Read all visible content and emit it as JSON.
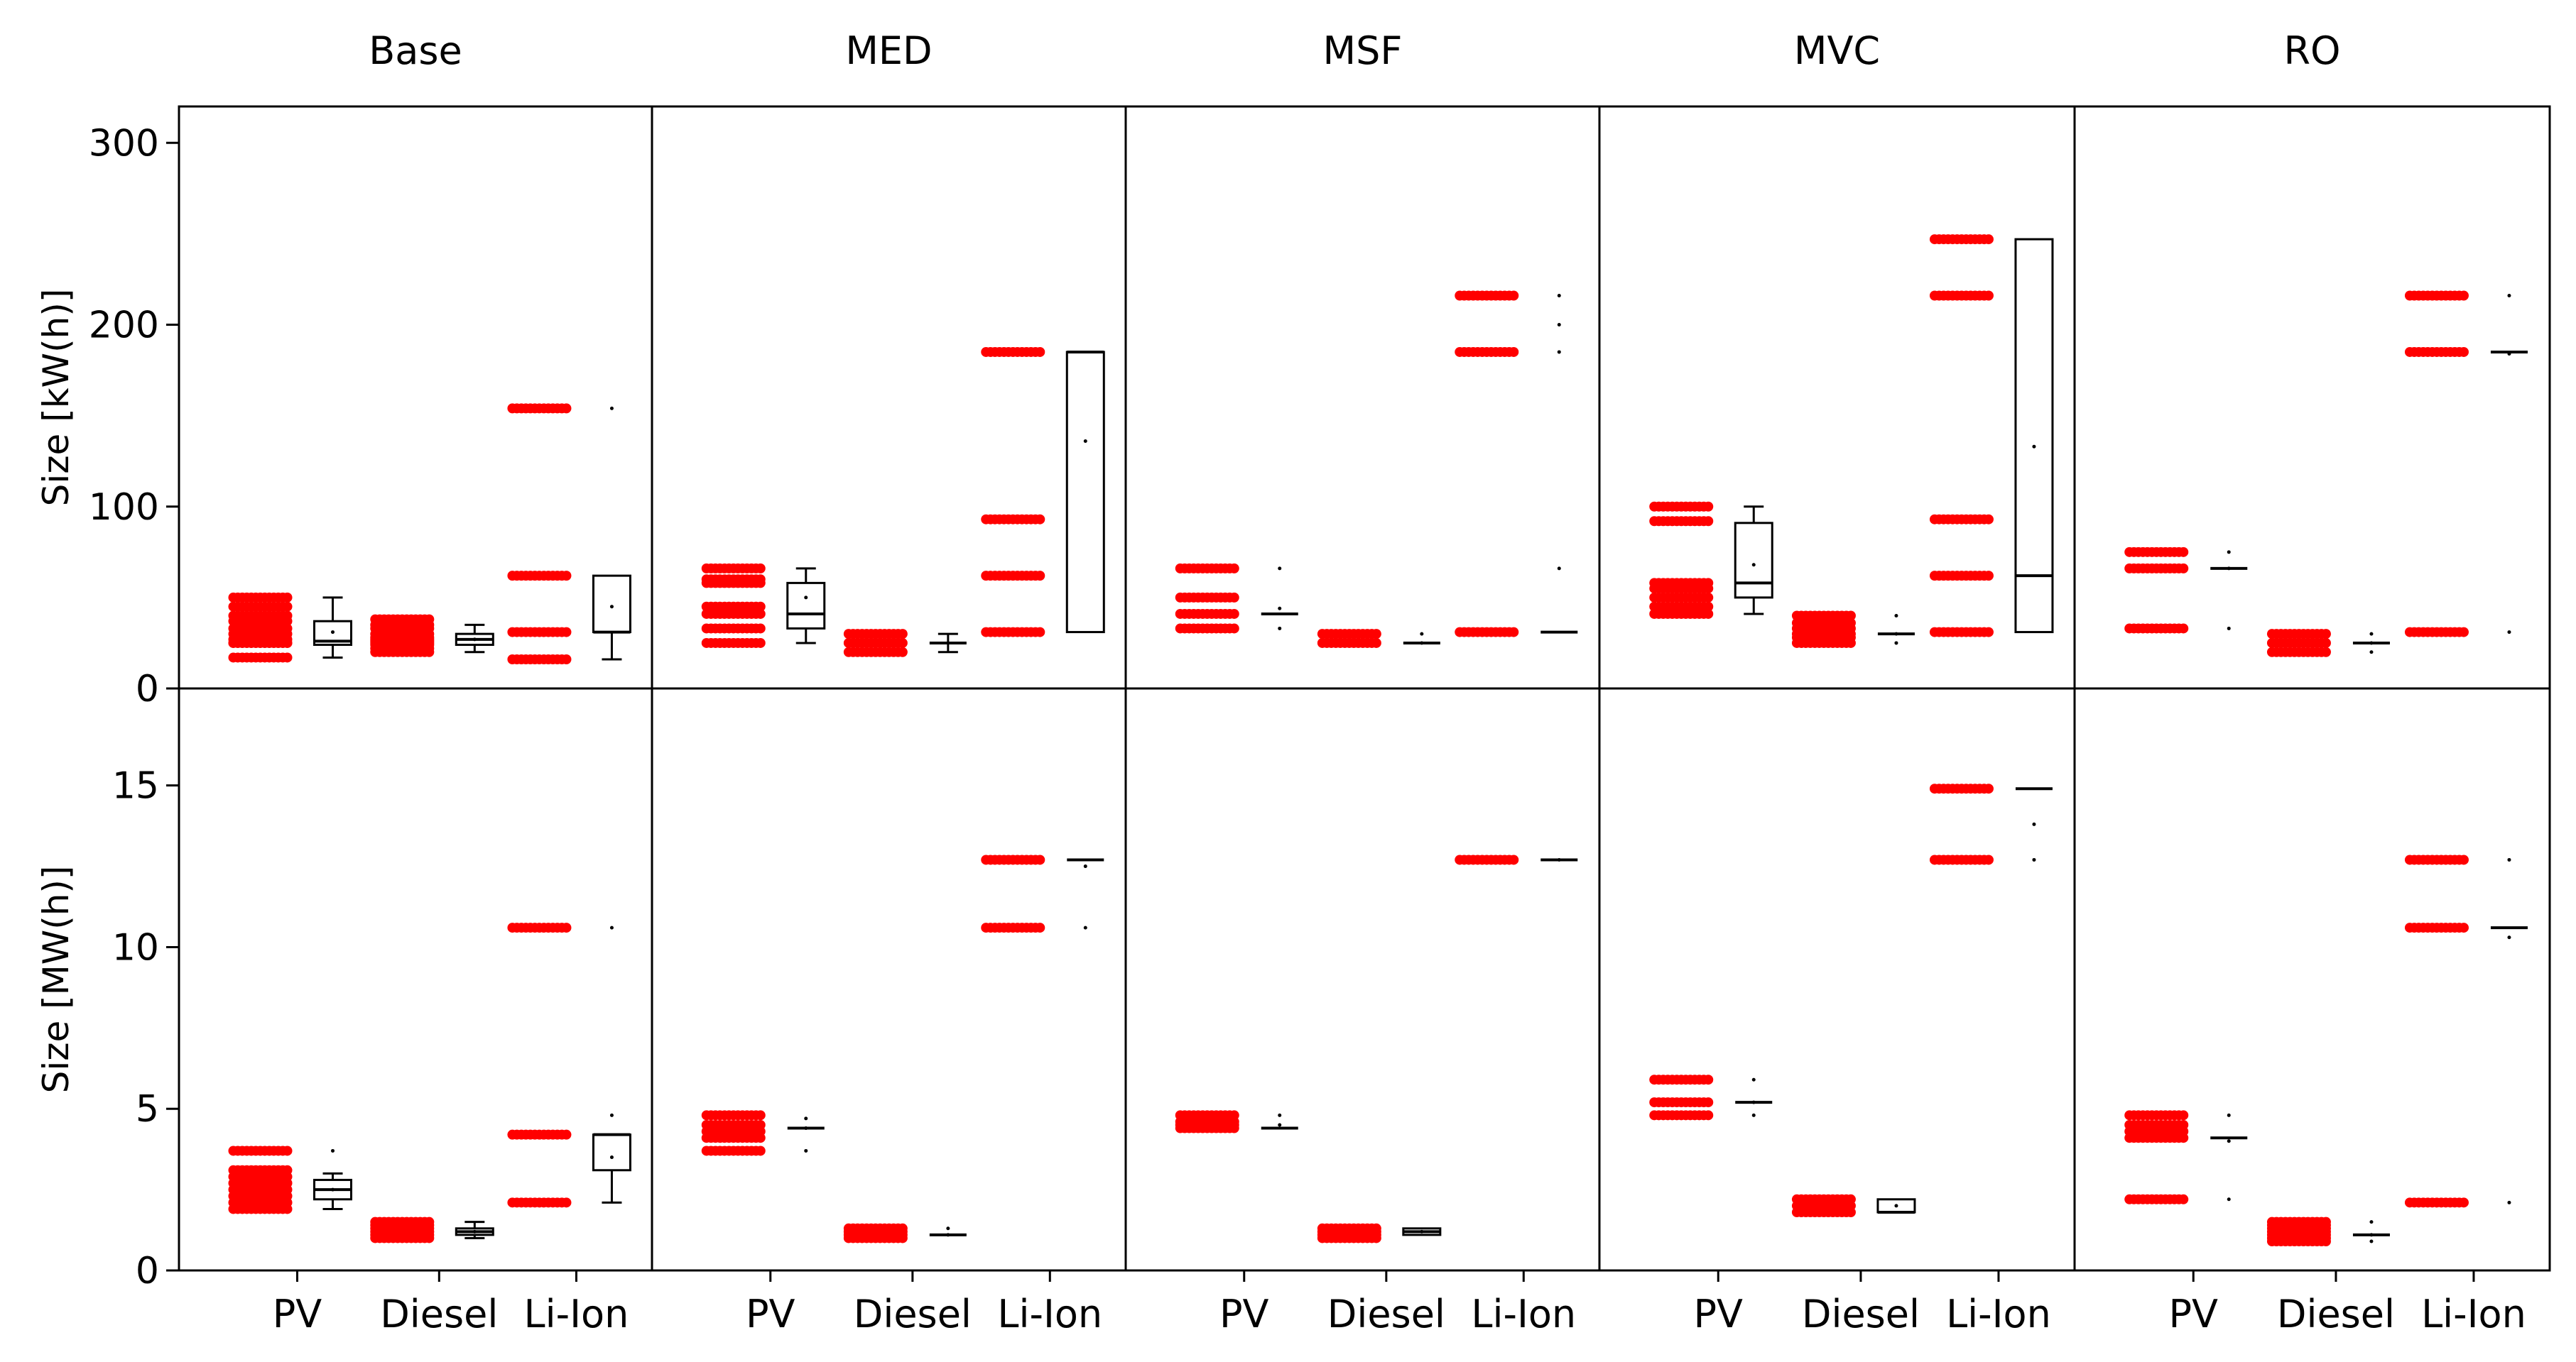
{
  "chart_data": {
    "type": "box-strip",
    "description_panels": [
      "Base",
      "MED",
      "MSF",
      "MVC",
      "RO"
    ],
    "categories": [
      "PV",
      "Diesel",
      "Li-Ion"
    ],
    "colors": {
      "points": "#ff0000",
      "box": "#000000",
      "axis": "#000000"
    },
    "rows": [
      {
        "ylabel": "Size [kW(h)]",
        "ylim": [
          0,
          320
        ],
        "yticks": [
          0,
          100,
          200,
          300
        ],
        "panels": [
          {
            "title": "Base",
            "series": [
              {
                "category": "PV",
                "points": [
                  25,
                  25,
                  27,
                  30,
                  33,
                  37,
                  40,
                  45,
                  50,
                  17
                ],
                "box": {
                  "whisker_low": 17,
                  "q1": 24,
                  "median": 26,
                  "q3": 37,
                  "whisker_high": 50,
                  "mean": 31
                }
              },
              {
                "category": "Diesel",
                "points": [
                  20,
                  22,
                  24,
                  25,
                  26,
                  27,
                  28,
                  30,
                  33,
                  35,
                  38
                ],
                "box": {
                  "whisker_low": 20,
                  "q1": 24,
                  "median": 27,
                  "q3": 30,
                  "whisker_high": 35,
                  "mean": 27
                }
              },
              {
                "category": "Li-Ion",
                "points": [
                  16,
                  31,
                  62,
                  154
                ],
                "box": {
                  "whisker_low": 16,
                  "q1": 31,
                  "median": 31,
                  "q3": 62,
                  "whisker_high": 62,
                  "mean": 45,
                  "outliers": [
                    154
                  ]
                }
              }
            ]
          },
          {
            "title": "MED",
            "series": [
              {
                "category": "PV",
                "points": [
                  25,
                  33,
                  41,
                  45,
                  58,
                  60,
                  66
                ],
                "box": {
                  "whisker_low": 25,
                  "q1": 33,
                  "median": 41,
                  "q3": 58,
                  "whisker_high": 66,
                  "mean": 50
                }
              },
              {
                "category": "Diesel",
                "points": [
                  20,
                  25,
                  30
                ],
                "box": {
                  "whisker_low": 20,
                  "q1": 25,
                  "median": 25,
                  "q3": 25,
                  "whisker_high": 30,
                  "mean": 25
                }
              },
              {
                "category": "Li-Ion",
                "points": [
                  31,
                  62,
                  93,
                  185
                ],
                "box": {
                  "whisker_low": 31,
                  "q1": 31,
                  "median": 185,
                  "q3": 185,
                  "whisker_high": 185,
                  "mean": 136
                }
              }
            ]
          },
          {
            "title": "MSF",
            "series": [
              {
                "category": "PV",
                "points": [
                  33,
                  41,
                  50,
                  66
                ],
                "box": {
                  "whisker_low": 41,
                  "q1": 41,
                  "median": 41,
                  "q3": 41,
                  "whisker_high": 41,
                  "mean": 44,
                  "outliers": [
                    33,
                    66
                  ]
                }
              },
              {
                "category": "Diesel",
                "points": [
                  25,
                  30
                ],
                "box": {
                  "whisker_low": 25,
                  "q1": 25,
                  "median": 25,
                  "q3": 25,
                  "whisker_high": 25,
                  "mean": 25,
                  "outliers": [
                    30
                  ]
                }
              },
              {
                "category": "Li-Ion",
                "points": [
                  31,
                  185,
                  216
                ],
                "box": {
                  "whisker_low": 31,
                  "q1": 31,
                  "median": 31,
                  "q3": 31,
                  "whisker_high": 31,
                  "mean": 66,
                  "outliers": [
                    185,
                    200,
                    216
                  ]
                }
              }
            ]
          },
          {
            "title": "MVC",
            "series": [
              {
                "category": "PV",
                "points": [
                  41,
                  45,
                  50,
                  55,
                  58,
                  92,
                  100
                ],
                "box": {
                  "whisker_low": 41,
                  "q1": 50,
                  "median": 58,
                  "q3": 91,
                  "whisker_high": 100,
                  "mean": 68
                }
              },
              {
                "category": "Diesel",
                "points": [
                  25,
                  28,
                  30,
                  33,
                  36,
                  40
                ],
                "box": {
                  "whisker_low": 30,
                  "q1": 30,
                  "median": 30,
                  "q3": 30,
                  "whisker_high": 30,
                  "mean": 30,
                  "outliers": [
                    25,
                    40
                  ]
                }
              },
              {
                "category": "Li-Ion",
                "points": [
                  31,
                  62,
                  93,
                  216,
                  247
                ],
                "box": {
                  "whisker_low": 31,
                  "q1": 31,
                  "median": 62,
                  "q3": 247,
                  "whisker_high": 247,
                  "mean": 133
                }
              }
            ]
          },
          {
            "title": "RO",
            "series": [
              {
                "category": "PV",
                "points": [
                  33,
                  66,
                  75
                ],
                "box": {
                  "whisker_low": 66,
                  "q1": 66,
                  "median": 66,
                  "q3": 66,
                  "whisker_high": 66,
                  "mean": 66,
                  "outliers": [
                    33,
                    75
                  ]
                }
              },
              {
                "category": "Diesel",
                "points": [
                  20,
                  25,
                  30
                ],
                "box": {
                  "whisker_low": 25,
                  "q1": 25,
                  "median": 25,
                  "q3": 25,
                  "whisker_high": 25,
                  "mean": 25,
                  "outliers": [
                    20,
                    30
                  ]
                }
              },
              {
                "category": "Li-Ion",
                "points": [
                  31,
                  185,
                  216
                ],
                "box": {
                  "whisker_low": 185,
                  "q1": 185,
                  "median": 185,
                  "q3": 185,
                  "whisker_high": 185,
                  "mean": 184,
                  "outliers": [
                    31,
                    216
                  ]
                }
              }
            ]
          }
        ]
      },
      {
        "ylabel": "Size [MW(h)]",
        "ylim": [
          0,
          18
        ],
        "yticks": [
          0,
          5,
          10,
          15
        ],
        "panels": [
          {
            "title": "Base",
            "series": [
              {
                "category": "PV",
                "points": [
                  1.9,
                  2.1,
                  2.3,
                  2.5,
                  2.7,
                  2.9,
                  3.1,
                  3.7
                ],
                "box": {
                  "whisker_low": 1.9,
                  "q1": 2.2,
                  "median": 2.5,
                  "q3": 2.8,
                  "whisker_high": 3.0,
                  "mean": 2.5,
                  "outliers": [
                    3.7
                  ]
                }
              },
              {
                "category": "Diesel",
                "points": [
                  1.0,
                  1.1,
                  1.2,
                  1.3,
                  1.4,
                  1.5
                ],
                "box": {
                  "whisker_low": 1.0,
                  "q1": 1.1,
                  "median": 1.2,
                  "q3": 1.3,
                  "whisker_high": 1.5,
                  "mean": 1.2
                }
              },
              {
                "category": "Li-Ion",
                "points": [
                  2.1,
                  4.2,
                  10.6
                ],
                "box": {
                  "whisker_low": 2.1,
                  "q1": 3.1,
                  "median": 4.2,
                  "q3": 4.2,
                  "whisker_high": 4.2,
                  "mean": 3.5,
                  "outliers": [
                    4.8,
                    10.6
                  ]
                }
              }
            ]
          },
          {
            "title": "MED",
            "series": [
              {
                "category": "PV",
                "points": [
                  3.7,
                  4.1,
                  4.3,
                  4.5,
                  4.8
                ],
                "box": {
                  "whisker_low": 4.4,
                  "q1": 4.4,
                  "median": 4.4,
                  "q3": 4.4,
                  "whisker_high": 4.4,
                  "mean": 4.4,
                  "outliers": [
                    3.7,
                    4.7
                  ]
                }
              },
              {
                "category": "Diesel",
                "points": [
                  1.0,
                  1.1,
                  1.2,
                  1.3
                ],
                "box": {
                  "whisker_low": 1.1,
                  "q1": 1.1,
                  "median": 1.1,
                  "q3": 1.1,
                  "whisker_high": 1.1,
                  "mean": 1.1,
                  "outliers": [
                    1.3
                  ]
                }
              },
              {
                "category": "Li-Ion",
                "points": [
                  10.6,
                  12.7
                ],
                "box": {
                  "whisker_low": 12.7,
                  "q1": 12.7,
                  "median": 12.7,
                  "q3": 12.7,
                  "whisker_high": 12.7,
                  "mean": 12.5,
                  "outliers": [
                    10.6
                  ]
                }
              }
            ]
          },
          {
            "title": "MSF",
            "series": [
              {
                "category": "PV",
                "points": [
                  4.4,
                  4.5,
                  4.6,
                  4.8
                ],
                "box": {
                  "whisker_low": 4.4,
                  "q1": 4.4,
                  "median": 4.4,
                  "q3": 4.4,
                  "whisker_high": 4.4,
                  "mean": 4.5,
                  "outliers": [
                    4.8
                  ]
                }
              },
              {
                "category": "Diesel",
                "points": [
                  1.0,
                  1.1,
                  1.2,
                  1.3
                ],
                "box": {
                  "whisker_low": 1.1,
                  "q1": 1.1,
                  "median": 1.2,
                  "q3": 1.3,
                  "whisker_high": 1.3,
                  "mean": 1.2
                }
              },
              {
                "category": "Li-Ion",
                "points": [
                  12.7
                ],
                "box": {
                  "whisker_low": 12.7,
                  "q1": 12.7,
                  "median": 12.7,
                  "q3": 12.7,
                  "whisker_high": 12.7,
                  "mean": 12.7
                }
              }
            ]
          },
          {
            "title": "MVC",
            "series": [
              {
                "category": "PV",
                "points": [
                  4.8,
                  5.2,
                  5.9
                ],
                "box": {
                  "whisker_low": 5.2,
                  "q1": 5.2,
                  "median": 5.2,
                  "q3": 5.2,
                  "whisker_high": 5.2,
                  "mean": 5.2,
                  "outliers": [
                    4.8,
                    5.9
                  ]
                }
              },
              {
                "category": "Diesel",
                "points": [
                  1.8,
                  2.0,
                  2.2
                ],
                "box": {
                  "whisker_low": 1.8,
                  "q1": 1.8,
                  "median": 1.8,
                  "q3": 2.2,
                  "whisker_high": 2.2,
                  "mean": 2.0
                }
              },
              {
                "category": "Li-Ion",
                "points": [
                  12.7,
                  14.9
                ],
                "box": {
                  "whisker_low": 14.9,
                  "q1": 14.9,
                  "median": 14.9,
                  "q3": 14.9,
                  "whisker_high": 14.9,
                  "mean": 13.8,
                  "outliers": [
                    12.7
                  ]
                }
              }
            ]
          },
          {
            "title": "RO",
            "series": [
              {
                "category": "PV",
                "points": [
                  2.2,
                  4.1,
                  4.3,
                  4.5,
                  4.8
                ],
                "box": {
                  "whisker_low": 4.1,
                  "q1": 4.1,
                  "median": 4.1,
                  "q3": 4.1,
                  "whisker_high": 4.1,
                  "mean": 4.0,
                  "outliers": [
                    2.2,
                    4.8
                  ]
                }
              },
              {
                "category": "Diesel",
                "points": [
                  0.9,
                  1.0,
                  1.1,
                  1.2,
                  1.3,
                  1.4,
                  1.5
                ],
                "box": {
                  "whisker_low": 1.1,
                  "q1": 1.1,
                  "median": 1.1,
                  "q3": 1.1,
                  "whisker_high": 1.1,
                  "mean": 1.1,
                  "outliers": [
                    0.9,
                    1.5
                  ]
                }
              },
              {
                "category": "Li-Ion",
                "points": [
                  2.1,
                  10.6,
                  12.7
                ],
                "box": {
                  "whisker_low": 10.6,
                  "q1": 10.6,
                  "median": 10.6,
                  "q3": 10.6,
                  "whisker_high": 10.6,
                  "mean": 10.3,
                  "outliers": [
                    2.1,
                    12.7
                  ]
                }
              }
            ]
          }
        ]
      }
    ]
  }
}
